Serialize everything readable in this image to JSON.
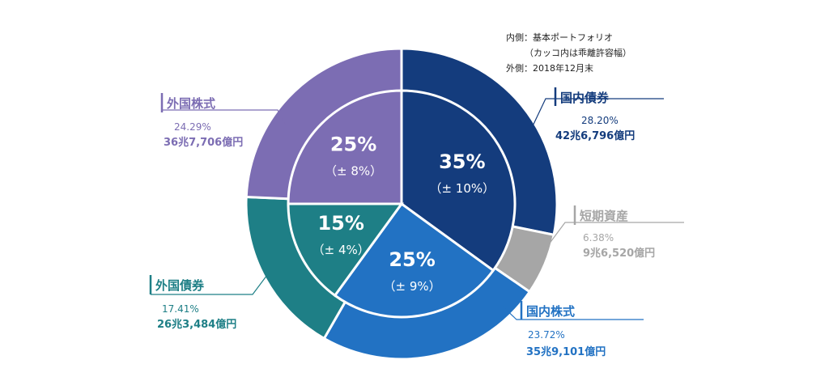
{
  "chart_data": {
    "type": "pie",
    "notes": [
      "内側：基本ポートフォリオ",
      "（カッコ内は乖離許容幅）",
      "外側：2018年12月末"
    ],
    "outer": [
      {
        "name": "国内債券",
        "percent": 28.2,
        "percent_label": "28.20%",
        "amount_label": "42兆6,796億円",
        "color": "#143c7d"
      },
      {
        "name": "短期資産",
        "percent": 6.38,
        "percent_label": "6.38%",
        "amount_label": "9兆6,520億円",
        "color": "#a6a6a6"
      },
      {
        "name": "国内株式",
        "percent": 23.72,
        "percent_label": "23.72%",
        "amount_label": "35兆9,101億円",
        "color": "#2272c3"
      },
      {
        "name": "外国債券",
        "percent": 17.41,
        "percent_label": "17.41%",
        "amount_label": "26兆3,484億円",
        "color": "#1e7f86"
      },
      {
        "name": "外国株式",
        "percent": 24.29,
        "percent_label": "24.29%",
        "amount_label": "36兆7,706億円",
        "color": "#7c6db3"
      }
    ],
    "inner": [
      {
        "name": "国内債券",
        "percent": 35,
        "percent_label": "35%",
        "tolerance_label": "（± 10%）",
        "color": "#143c7d"
      },
      {
        "name": "国内株式",
        "percent": 25,
        "percent_label": "25%",
        "tolerance_label": "（± 9%）",
        "color": "#2272c3"
      },
      {
        "name": "外国債券",
        "percent": 15,
        "percent_label": "15%",
        "tolerance_label": "（± 4%）",
        "color": "#1e7f86"
      },
      {
        "name": "外国株式",
        "percent": 25,
        "percent_label": "25%",
        "tolerance_label": "（± 8%）",
        "color": "#7c6db3"
      }
    ]
  }
}
